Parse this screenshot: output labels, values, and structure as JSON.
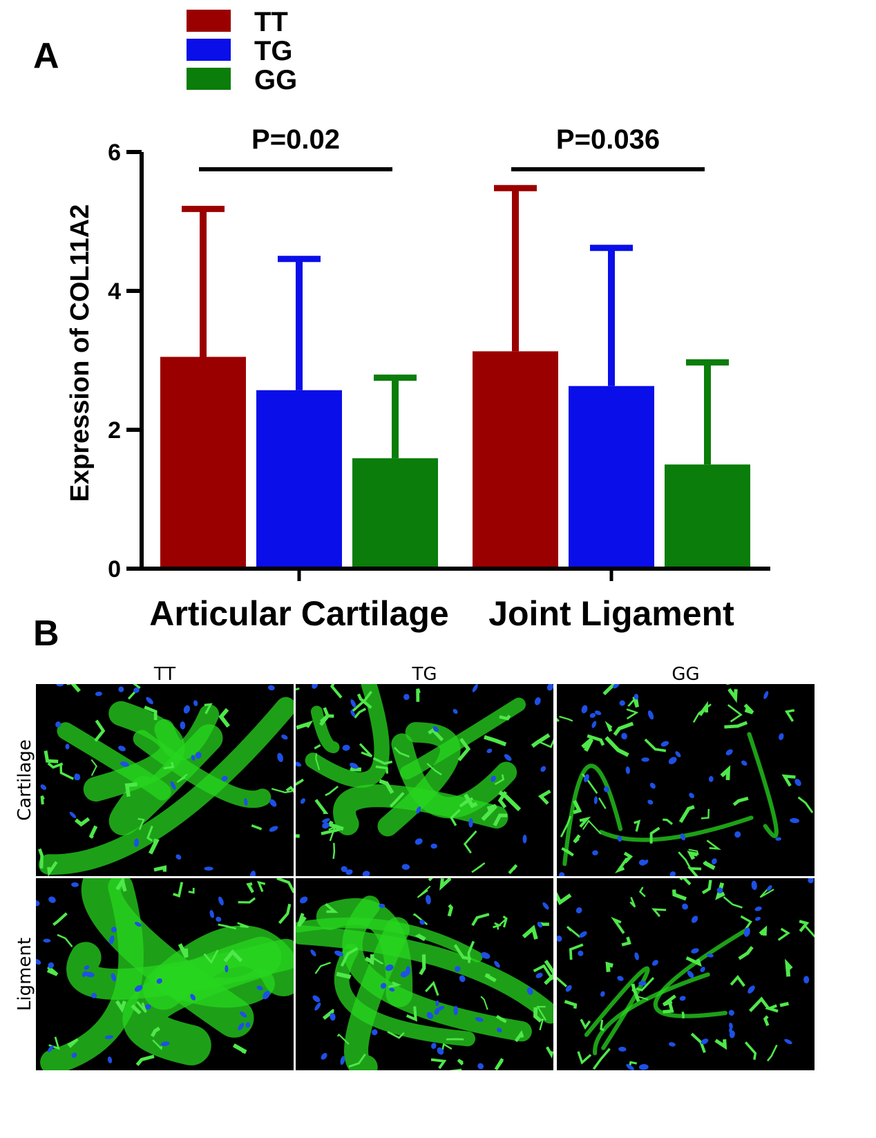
{
  "panel_a": {
    "letter": "A",
    "legend": [
      {
        "label": "TT",
        "color": "#9b0000"
      },
      {
        "label": "TG",
        "color": "#0a0ee8"
      },
      {
        "label": "GG",
        "color": "#0a7d0a"
      }
    ],
    "significance": [
      {
        "label": "P=0.02",
        "group": 0
      },
      {
        "label": "P=0.036",
        "group": 1
      }
    ]
  },
  "chart_data": {
    "type": "bar",
    "title": "",
    "ylabel": "Expression of COL11A2",
    "xlabel": "",
    "ylim": [
      0,
      6
    ],
    "yticks": [
      0,
      2,
      4,
      6
    ],
    "grid": false,
    "legend_position": "top-left",
    "categories": [
      "Articular Cartilage",
      "Joint Ligament"
    ],
    "series": [
      {
        "name": "TT",
        "color": "#9b0000",
        "values": [
          3.05,
          3.13
        ],
        "error_upper": [
          5.18,
          5.48
        ]
      },
      {
        "name": "TG",
        "color": "#0a0ee8",
        "values": [
          2.57,
          2.63
        ],
        "error_upper": [
          4.46,
          4.62
        ]
      },
      {
        "name": "GG",
        "color": "#0a7d0a",
        "values": [
          1.59,
          1.5
        ],
        "error_upper": [
          2.75,
          2.97
        ]
      }
    ]
  },
  "panel_b": {
    "letter": "B",
    "columns": [
      "TT",
      "TG",
      "GG"
    ],
    "rows": [
      "Cartilage",
      "Ligment"
    ],
    "image_colors": {
      "background": "#000000",
      "stain": "#27d61f",
      "nuclei": "#1e50e6",
      "highlight": "#4fe84a"
    }
  }
}
